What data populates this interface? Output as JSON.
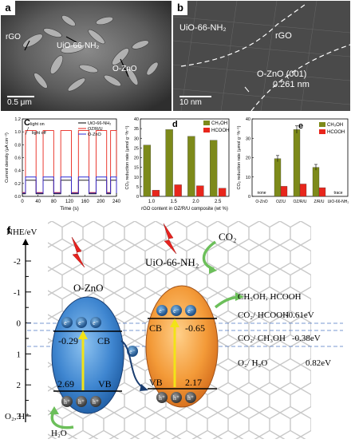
{
  "panels": {
    "a": {
      "letter": "a",
      "labels": {
        "rgo": "rGO",
        "uio": "UiO-66-NH₂",
        "ozno": "O-ZnO"
      },
      "scale": "0.5 μm"
    },
    "b": {
      "letter": "b",
      "labels": {
        "uio": "UiO-66-NH₂",
        "rgo": "rGO",
        "ozno": "O-ZnO (001)",
        "spacing": "0.261 nm"
      },
      "scale": "10 nm"
    },
    "c": {
      "letter": "C"
    },
    "d": {
      "letter": "d"
    },
    "e": {
      "letter": "e"
    },
    "f": {
      "letter": "f"
    }
  },
  "chart_data": [
    {
      "type": "line",
      "xlabel": "Time (s)",
      "ylabel": "Current density (μA cm⁻²)",
      "xlim": [
        0,
        240
      ],
      "ylim": [
        0,
        1.2
      ],
      "x_ticks": [
        "0",
        "40",
        "80",
        "120",
        "160",
        "200",
        "240"
      ],
      "y_ticks": [
        "0.0",
        "0.2",
        "0.4",
        "0.6",
        "0.8",
        "1.0",
        "1.2"
      ],
      "annotations": [
        "light on",
        "light off"
      ],
      "on_periods": [
        [
          8,
          35
        ],
        [
          53,
          80
        ],
        [
          98,
          125
        ],
        [
          143,
          170
        ],
        [
          188,
          215
        ],
        [
          225,
          240
        ]
      ],
      "series": [
        {
          "name": "UiO-66-NH₂",
          "on": 0.25,
          "off": 0.04,
          "color": "#000000"
        },
        {
          "name": "OZ/R/U",
          "on": 1.02,
          "off": 0.06,
          "color": "#e8261c"
        },
        {
          "name": "O-ZnO",
          "on": 0.3,
          "off": 0.05,
          "color": "#2b2bd6"
        }
      ]
    },
    {
      "type": "bar",
      "xlabel": "rGO content in OZ/R/U composite (wt %)",
      "ylabel": "CO₂ reduction rate (μmol g⁻¹h⁻¹)",
      "categories": [
        "1.0",
        "1.5",
        "2.0",
        "2.5"
      ],
      "ylim": [
        0,
        40
      ],
      "y_ticks": [
        "0",
        "5",
        "10",
        "15",
        "20",
        "25",
        "30",
        "35",
        "40"
      ],
      "series": [
        {
          "name": "CH₃OH",
          "values": [
            26.5,
            34.5,
            31,
            29
          ],
          "color": "#7d8a1a"
        },
        {
          "name": "HCOOH",
          "values": [
            3.2,
            6,
            5.5,
            4.2
          ],
          "color": "#e8261c"
        }
      ]
    },
    {
      "type": "bar",
      "ylabel": "CO₂ reduction rate (μmol g⁻¹h⁻¹)",
      "categories": [
        "O-ZnO",
        "OZ/U",
        "OZ/R/U",
        "Z/R/U",
        "UiO-66-NH₂"
      ],
      "ylim": [
        0,
        40
      ],
      "y_ticks": [
        "0",
        "10",
        "20",
        "30",
        "40"
      ],
      "category_notes": [
        {
          "category": "O-ZnO",
          "text": "none"
        },
        {
          "category": "UiO-66-NH₂",
          "text": "trace"
        }
      ],
      "series": [
        {
          "name": "CH₃OH",
          "values": [
            0,
            19.5,
            34.5,
            15,
            0
          ],
          "errors": [
            0,
            1.6,
            1.9,
            1.5,
            0
          ],
          "color": "#7d8a1a"
        },
        {
          "name": "HCOOH",
          "values": [
            0,
            5.2,
            6.4,
            4.5,
            0
          ],
          "color": "#e8261c"
        }
      ]
    }
  ],
  "diagram": {
    "axis_label": "NHE/eV",
    "axis_ticks": [
      "-2",
      "-1.5",
      "-1",
      "-0.5",
      "0",
      "0.5",
      "1",
      "1.5",
      "2",
      "2.5",
      "3"
    ],
    "left": {
      "name": "O-ZnO",
      "cb_label": "CB",
      "cb_value": "-0.29",
      "vb_label": "VB",
      "vb_value": "2.69"
    },
    "right": {
      "name": "UiO-66-NH₂",
      "cb_label": "CB",
      "cb_value": "-0.65",
      "vb_label": "VB",
      "vb_value": "2.17"
    },
    "electron": "e⁻",
    "hole": "h⁺",
    "co2": "CO₂",
    "product": "CH₃OH, HCOOH",
    "potentials": [
      {
        "label": "CO₂/ HCOOH",
        "value": "-0.61eV"
      },
      {
        "label": "CO₂/ CH₃OH",
        "value": "-0.38eV"
      },
      {
        "label": "O₂/ H₂O",
        "value": "0.82eV"
      }
    ],
    "oxidation": "O₂, H⁺",
    "water": "H₂O"
  }
}
